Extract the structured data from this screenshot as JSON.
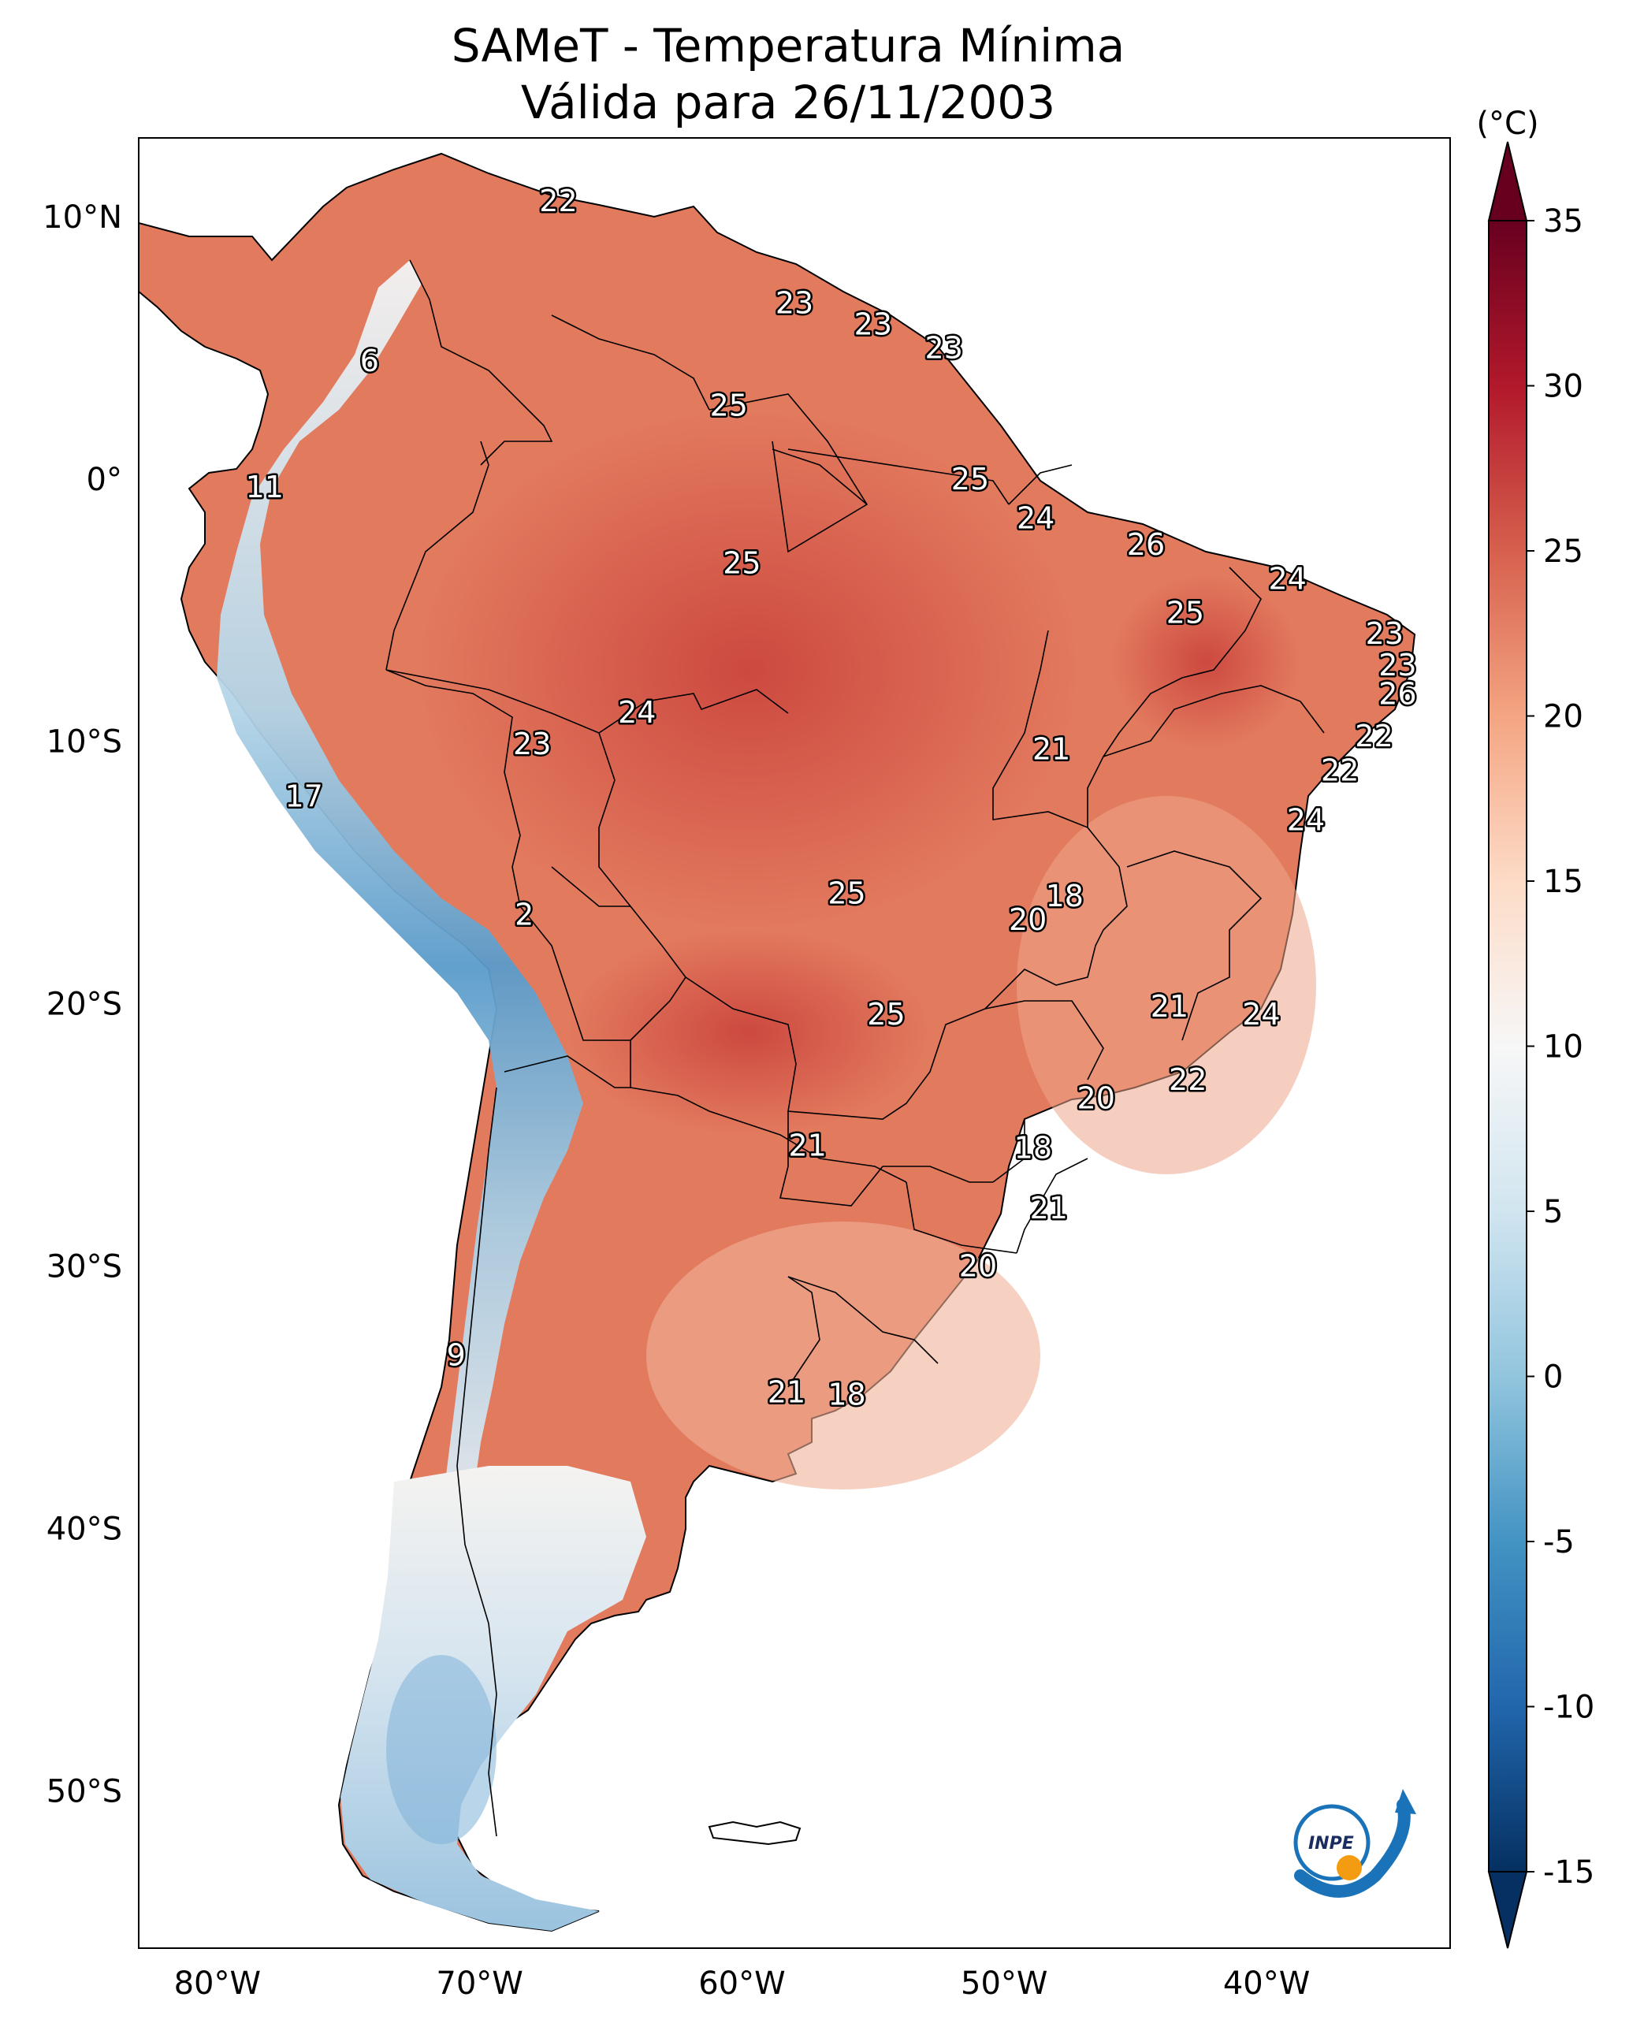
{
  "title_line1": "SAMeT - Temperatura Mínima",
  "title_line2": "Válida para 26/11/2003",
  "colorbar": {
    "unit": "(°C)",
    "ticks": [
      "35",
      "30",
      "25",
      "20",
      "15",
      "10",
      "5",
      "0",
      "-5",
      "-10",
      "-15"
    ],
    "min": -15,
    "max": 35,
    "colors": [
      "#053061",
      "#2166ac",
      "#4393c3",
      "#92c5de",
      "#d1e5f0",
      "#f7f7f7",
      "#fddbc7",
      "#f4a582",
      "#d6604d",
      "#b2182b",
      "#67001f"
    ]
  },
  "axes": {
    "lat_labels": [
      "10°N",
      "0°",
      "10°S",
      "20°S",
      "30°S",
      "40°S",
      "50°S"
    ],
    "lon_labels": [
      "80°W",
      "70°W",
      "60°W",
      "50°W",
      "40°W"
    ]
  },
  "logo_text": "INPE",
  "map_labels": [
    {
      "text": "22",
      "lon": -67.0,
      "lat": 10.6
    },
    {
      "text": "6",
      "lon": -74.2,
      "lat": 4.5
    },
    {
      "text": "23",
      "lon": -58.0,
      "lat": 6.7
    },
    {
      "text": "23",
      "lon": -55.0,
      "lat": 5.9
    },
    {
      "text": "23",
      "lon": -52.3,
      "lat": 5.0
    },
    {
      "text": "25",
      "lon": -60.5,
      "lat": 2.8
    },
    {
      "text": "11",
      "lon": -78.2,
      "lat": -0.3
    },
    {
      "text": "25",
      "lon": -51.3,
      "lat": 0.0
    },
    {
      "text": "24",
      "lon": -48.8,
      "lat": -1.5
    },
    {
      "text": "26",
      "lon": -44.6,
      "lat": -2.5
    },
    {
      "text": "24",
      "lon": -39.2,
      "lat": -3.8
    },
    {
      "text": "25",
      "lon": -60.0,
      "lat": -3.2
    },
    {
      "text": "25",
      "lon": -43.1,
      "lat": -5.1
    },
    {
      "text": "23",
      "lon": -35.5,
      "lat": -5.9
    },
    {
      "text": "23",
      "lon": -35.0,
      "lat": -7.1
    },
    {
      "text": "26",
      "lon": -35.0,
      "lat": -8.2
    },
    {
      "text": "24",
      "lon": -64.0,
      "lat": -8.9
    },
    {
      "text": "23",
      "lon": -68.0,
      "lat": -10.1
    },
    {
      "text": "21",
      "lon": -48.2,
      "lat": -10.3
    },
    {
      "text": "22",
      "lon": -35.9,
      "lat": -9.8
    },
    {
      "text": "22",
      "lon": -37.2,
      "lat": -11.1
    },
    {
      "text": "17",
      "lon": -76.7,
      "lat": -12.1
    },
    {
      "text": "24",
      "lon": -38.5,
      "lat": -13.0
    },
    {
      "text": "25",
      "lon": -56.0,
      "lat": -15.8
    },
    {
      "text": "18",
      "lon": -47.7,
      "lat": -15.9
    },
    {
      "text": "20",
      "lon": -49.1,
      "lat": -16.8
    },
    {
      "text": "2",
      "lon": -68.3,
      "lat": -16.6
    },
    {
      "text": "21",
      "lon": -43.7,
      "lat": -20.1
    },
    {
      "text": "24",
      "lon": -40.2,
      "lat": -20.4
    },
    {
      "text": "25",
      "lon": -54.5,
      "lat": -20.4
    },
    {
      "text": "22",
      "lon": -43.0,
      "lat": -22.9
    },
    {
      "text": "20",
      "lon": -46.5,
      "lat": -23.6
    },
    {
      "text": "21",
      "lon": -57.5,
      "lat": -25.4
    },
    {
      "text": "18",
      "lon": -48.9,
      "lat": -25.5
    },
    {
      "text": "21",
      "lon": -48.3,
      "lat": -27.8
    },
    {
      "text": "20",
      "lon": -51.0,
      "lat": -30.0
    },
    {
      "text": "9",
      "lon": -70.9,
      "lat": -33.4
    },
    {
      "text": "21",
      "lon": -58.3,
      "lat": -34.8
    },
    {
      "text": "18",
      "lon": -56.0,
      "lat": -34.9
    }
  ]
}
